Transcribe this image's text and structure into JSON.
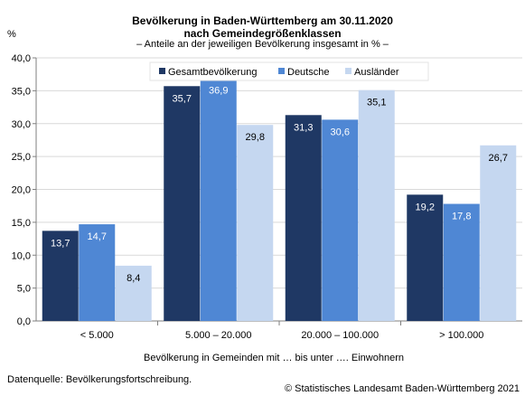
{
  "title_line1": "Bevölkerung in Baden-Württemberg am 30.11.2020",
  "title_line2": "nach Gemeindegrößenklassen",
  "subtitle": "– Anteile  an der jeweiligen Bevölkerung insgesamt in % –",
  "unit_label": "%",
  "source": "Datenquelle: Bevölkerungsfortschreibung.",
  "copyright": "© Statistisches Landesamt Baden-Württemberg 2021",
  "chart_data": {
    "type": "bar",
    "categories": [
      "< 5.000",
      "5.000 – 20.000",
      "20.000 – 100.000",
      "> 100.000"
    ],
    "series": [
      {
        "name": "Gesamtbevölkerung",
        "color": "#1f3864",
        "values": [
          13.7,
          35.7,
          31.3,
          19.2
        ]
      },
      {
        "name": "Deutsche",
        "color": "#4f87d4",
        "values": [
          14.7,
          36.9,
          30.6,
          17.8
        ]
      },
      {
        "name": "Ausländer",
        "color": "#c5d7f0",
        "values": [
          8.4,
          29.8,
          35.1,
          26.7
        ]
      }
    ],
    "xlabel": "Bevölkerung in Gemeinden mit … bis unter …. Einwohnern",
    "ylabel": "%",
    "ylim": [
      0,
      40
    ],
    "yticks": [
      "0,0",
      "5,0",
      "10,0",
      "15,0",
      "20,0",
      "25,0",
      "30,0",
      "35,0",
      "40,0"
    ],
    "data_labels": [
      [
        "13,7",
        "35,7",
        "31,3",
        "19,2"
      ],
      [
        "14,7",
        "36,9",
        "30,6",
        "17,8"
      ],
      [
        "8,4",
        "29,8",
        "35,1",
        "26,7"
      ]
    ],
    "grid": true,
    "legend_position": "top"
  }
}
